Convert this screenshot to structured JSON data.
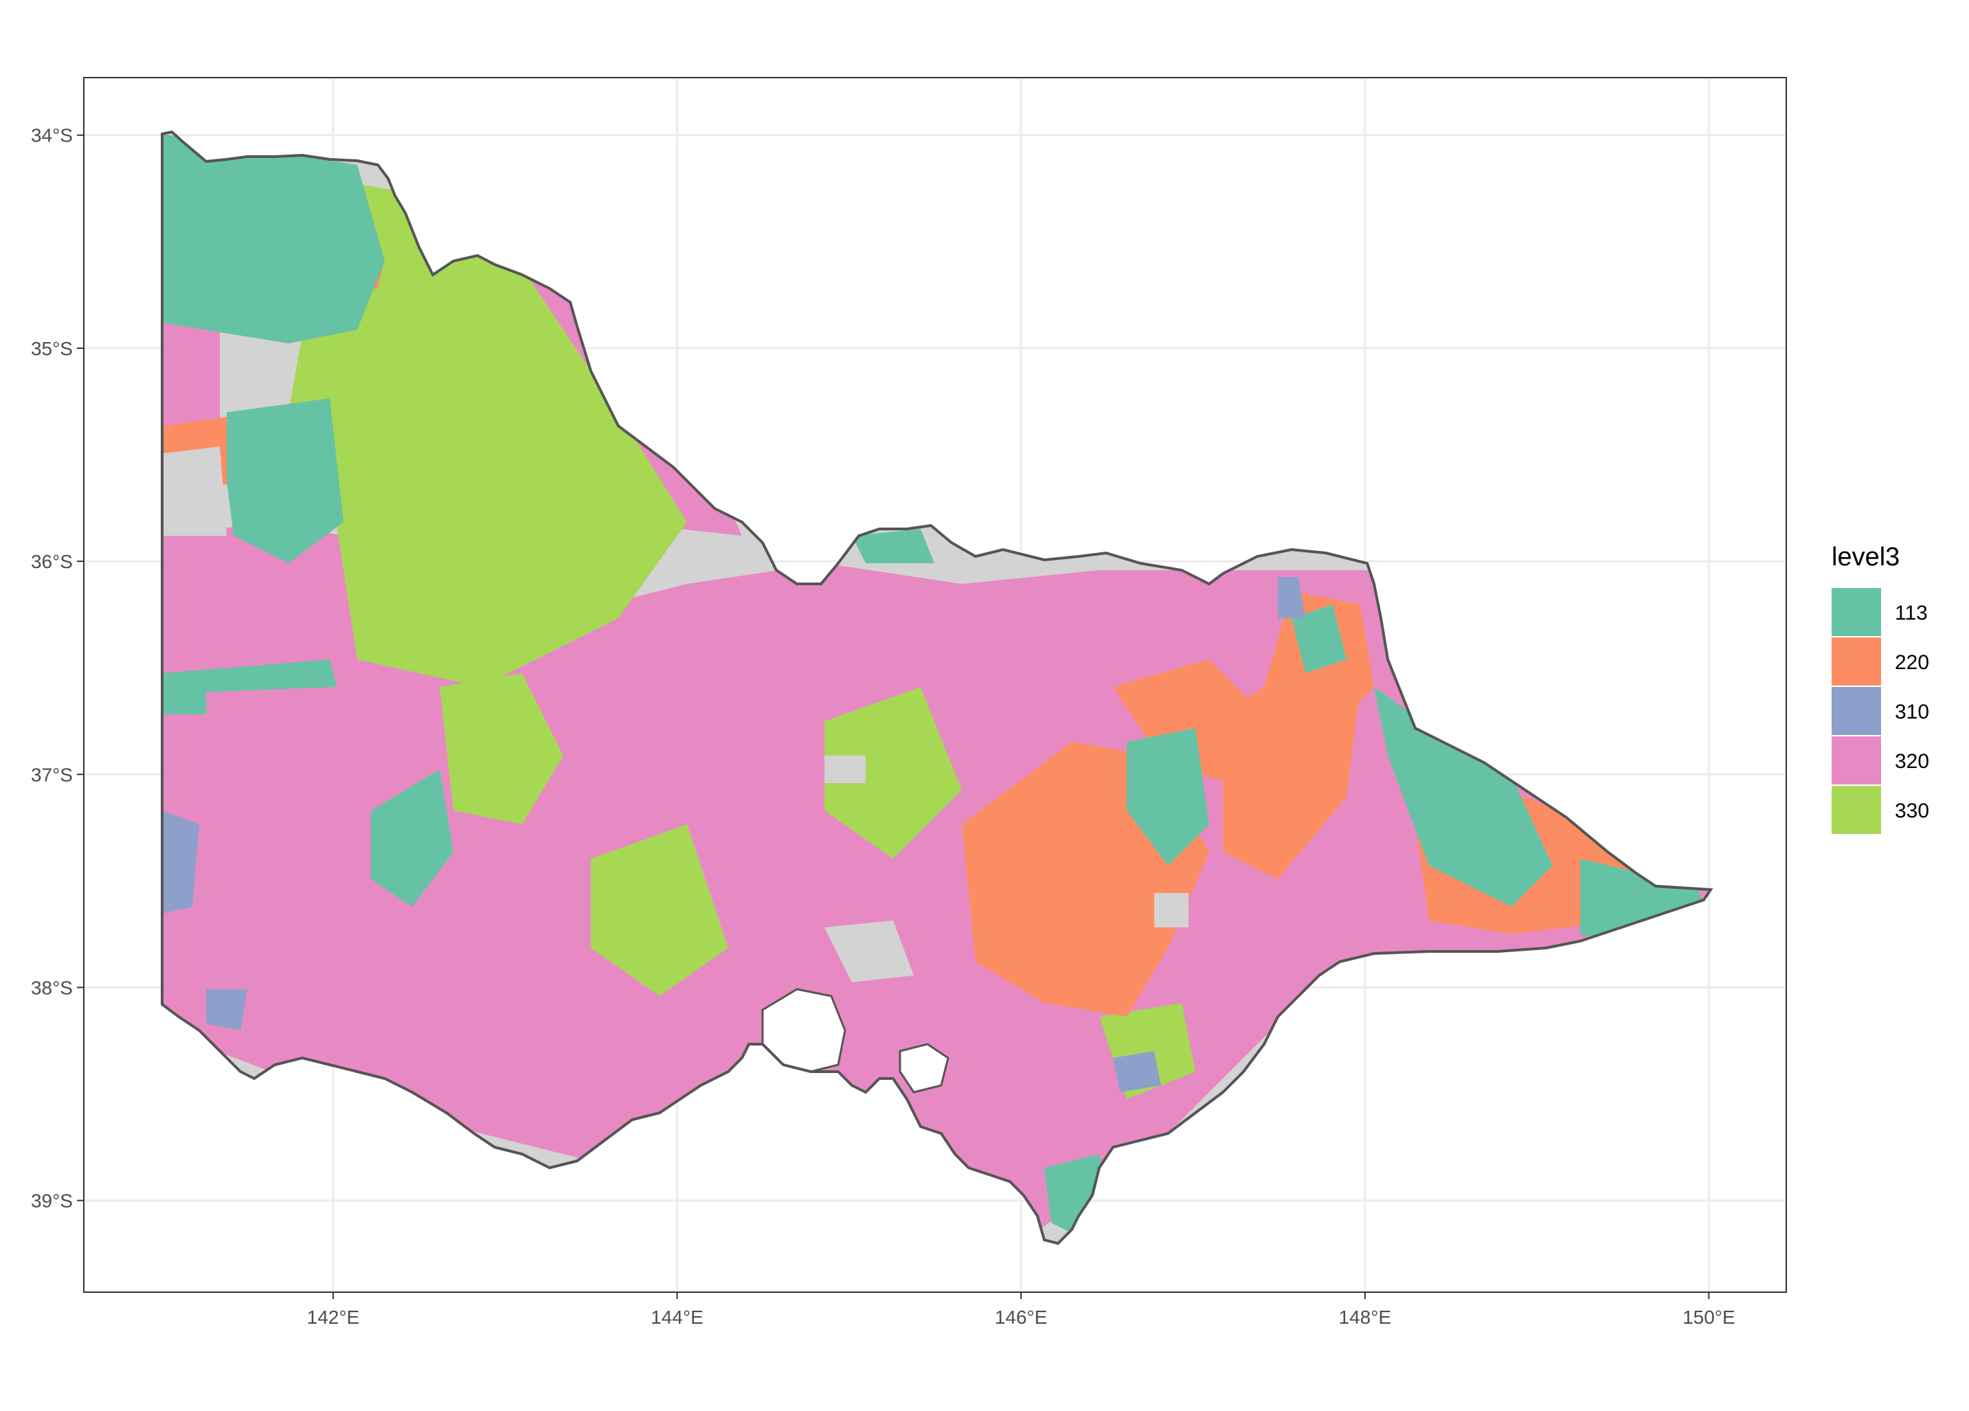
{
  "map": {
    "x_axis": {
      "ticks": [
        {
          "value": 142,
          "label": "142°E"
        },
        {
          "value": 144,
          "label": "144°E"
        },
        {
          "value": 146,
          "label": "146°E"
        },
        {
          "value": 148,
          "label": "148°E"
        },
        {
          "value": 150,
          "label": "150°E"
        }
      ]
    },
    "y_axis": {
      "ticks": [
        {
          "value": -34,
          "label": "34°S"
        },
        {
          "value": -35,
          "label": "35°S"
        },
        {
          "value": -36,
          "label": "36°S"
        },
        {
          "value": -37,
          "label": "37°S"
        },
        {
          "value": -38,
          "label": "38°S"
        },
        {
          "value": -39,
          "label": "39°S"
        }
      ]
    },
    "extent": {
      "lon": [
        140.55,
        150.45
      ],
      "lat": [
        -39.43,
        -33.73
      ]
    },
    "grid": true,
    "background_fill": "#d3d3d3",
    "border_color": "#555555",
    "legend": {
      "title": "level3",
      "placement": "right",
      "items": [
        {
          "code": "113",
          "color": "#66c2a5"
        },
        {
          "code": "220",
          "color": "#fc8d62"
        },
        {
          "code": "310",
          "color": "#8da0cb"
        },
        {
          "code": "320",
          "color": "#e78ac3"
        },
        {
          "code": "330",
          "color": "#a6d854"
        }
      ]
    }
  }
}
